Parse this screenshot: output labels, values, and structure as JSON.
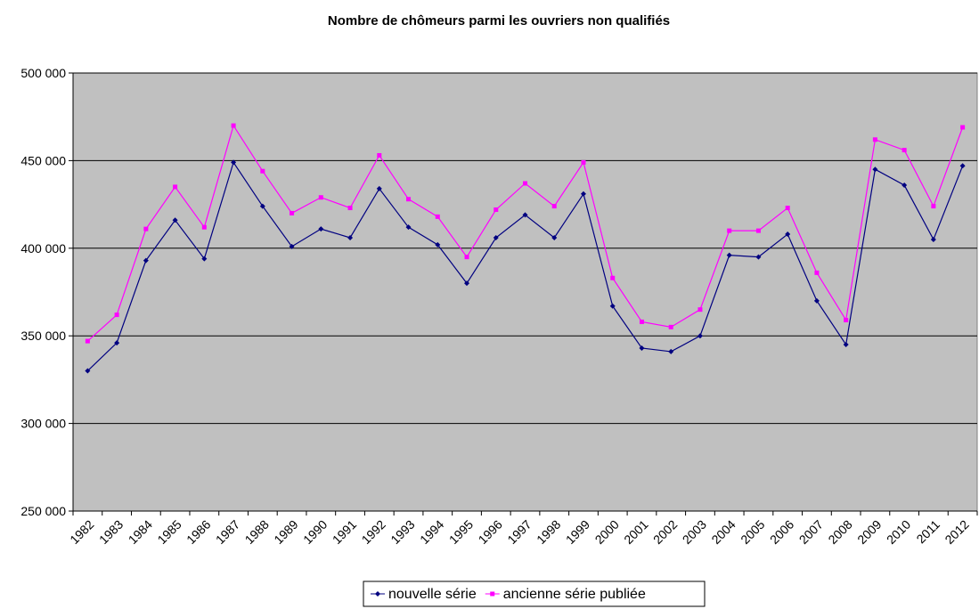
{
  "chart_data": {
    "type": "line",
    "title": "Nombre de chômeurs parmi les ouvriers non qualifiés",
    "categories": [
      "1982",
      "1983",
      "1984",
      "1985",
      "1986",
      "1987",
      "1988",
      "1989",
      "1990",
      "1991",
      "1992",
      "1993",
      "1994",
      "1995",
      "1996",
      "1997",
      "1998",
      "1999",
      "2000",
      "2001",
      "2002",
      "2003",
      "2004",
      "2005",
      "2006",
      "2007",
      "2008",
      "2009",
      "2010",
      "2011",
      "2012"
    ],
    "series": [
      {
        "name": "nouvelle série",
        "color": "#000080",
        "marker": "diamond",
        "values": [
          330000,
          346000,
          393000,
          416000,
          394000,
          449000,
          424000,
          401000,
          411000,
          406000,
          434000,
          412000,
          402000,
          380000,
          406000,
          419000,
          406000,
          431000,
          367000,
          343000,
          341000,
          350000,
          396000,
          395000,
          408000,
          370000,
          345000,
          445000,
          436000,
          405000,
          447000
        ]
      },
      {
        "name": "ancienne série publiée",
        "color": "#ff00ff",
        "marker": "square",
        "values": [
          347000,
          362000,
          411000,
          435000,
          412000,
          470000,
          444000,
          420000,
          429000,
          423000,
          453000,
          428000,
          418000,
          395000,
          422000,
          437000,
          424000,
          449000,
          383000,
          358000,
          355000,
          365000,
          410000,
          410000,
          423000,
          386000,
          359000,
          462000,
          456000,
          424000,
          469000
        ]
      }
    ],
    "ylim": [
      250000,
      500000
    ],
    "yticks": [
      {
        "value": 250000,
        "label": "250 000"
      },
      {
        "value": 300000,
        "label": "300 000"
      },
      {
        "value": 350000,
        "label": "350 000"
      },
      {
        "value": 400000,
        "label": "400 000"
      },
      {
        "value": 450000,
        "label": "450 000"
      },
      {
        "value": 500000,
        "label": "500 000"
      }
    ],
    "grid": true,
    "legend": "bottom"
  }
}
